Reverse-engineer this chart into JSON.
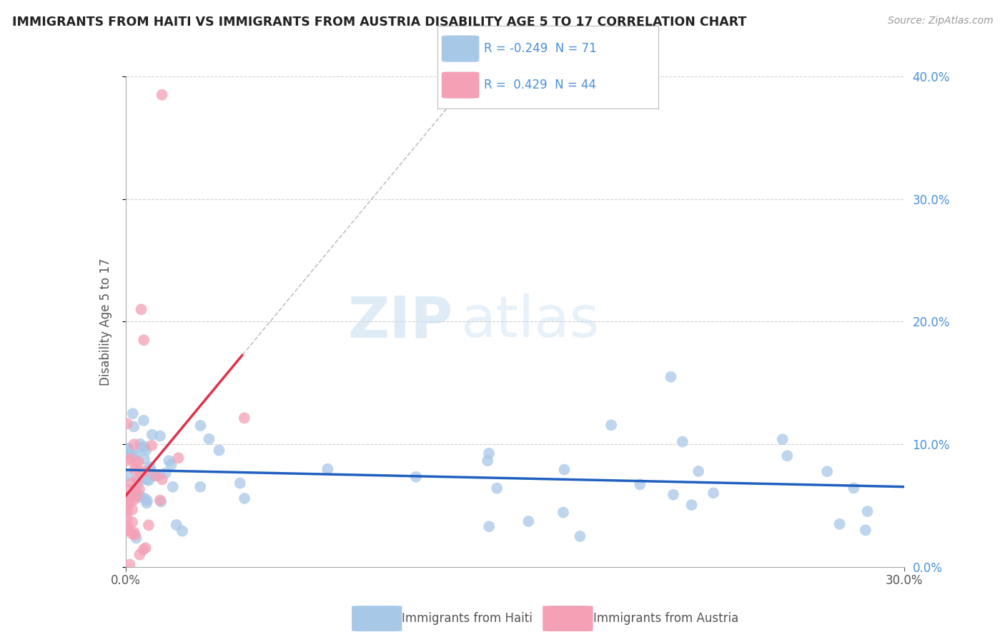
{
  "title": "IMMIGRANTS FROM HAITI VS IMMIGRANTS FROM AUSTRIA DISABILITY AGE 5 TO 17 CORRELATION CHART",
  "source_text": "Source: ZipAtlas.com",
  "xlabel_haiti": "Immigrants from Haiti",
  "xlabel_austria": "Immigrants from Austria",
  "ylabel": "Disability Age 5 to 17",
  "watermark_zip": "ZIP",
  "watermark_atlas": "atlas",
  "haiti_R": -0.249,
  "haiti_N": 71,
  "austria_R": 0.429,
  "austria_N": 44,
  "xlim": [
    0.0,
    0.3
  ],
  "ylim": [
    0.0,
    0.4
  ],
  "haiti_color": "#a8c8e8",
  "austria_color": "#f4a0b5",
  "haiti_line_color": "#2060c0",
  "austria_line_color": "#e0304a",
  "background_color": "#ffffff",
  "grid_color": "#cccccc",
  "title_color": "#222222",
  "right_axis_color": "#4a90d9",
  "legend_text_color": "#4a90d9"
}
